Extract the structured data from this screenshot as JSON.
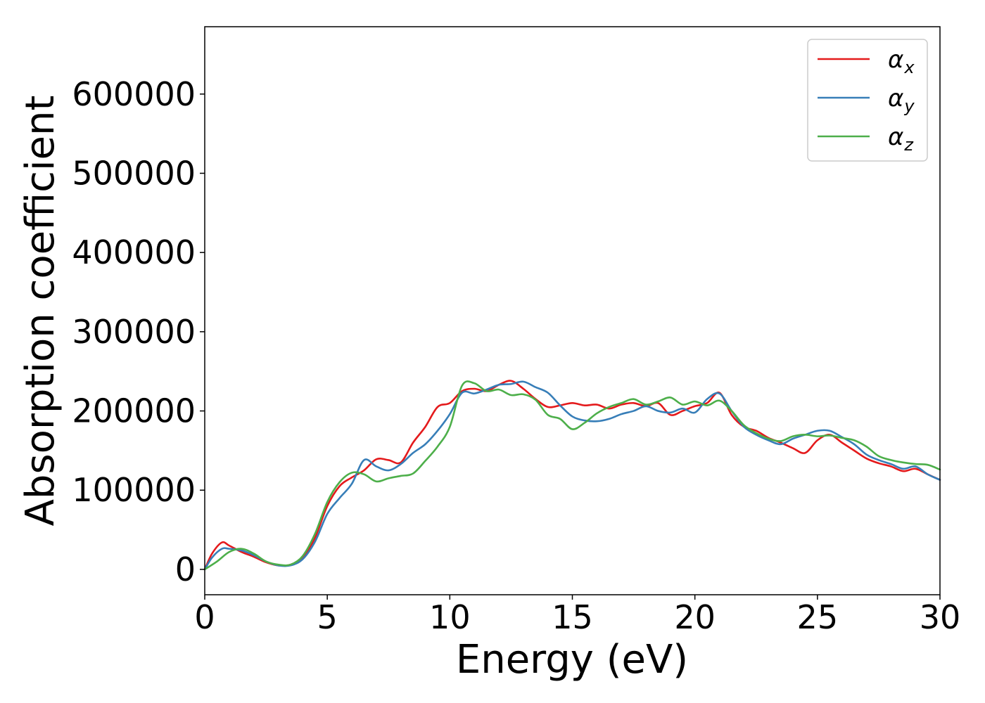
{
  "chart_data": {
    "type": "line",
    "title": "",
    "xlabel": "Energy (eV)",
    "ylabel": "Absorption coefficient",
    "xlim": [
      0,
      30
    ],
    "ylim": [
      -32000,
      685000
    ],
    "xticks": [
      0,
      5,
      10,
      15,
      20,
      25,
      30
    ],
    "yticks": [
      0,
      100000,
      200000,
      300000,
      400000,
      500000,
      600000
    ],
    "grid": false,
    "legend_position": "top-right",
    "series": [
      {
        "name": "αx",
        "symbol": "α",
        "subscript": "x",
        "color": "#e41a1c",
        "points": [
          [
            0,
            0
          ],
          [
            0.3,
            20000
          ],
          [
            0.7,
            34000
          ],
          [
            1.0,
            30000
          ],
          [
            1.5,
            22000
          ],
          [
            2.0,
            16000
          ],
          [
            2.5,
            9000
          ],
          [
            3.0,
            5000
          ],
          [
            3.5,
            6000
          ],
          [
            4.0,
            15000
          ],
          [
            4.5,
            40000
          ],
          [
            5.0,
            80000
          ],
          [
            5.5,
            105000
          ],
          [
            6.0,
            116000
          ],
          [
            6.5,
            125000
          ],
          [
            7.0,
            139000
          ],
          [
            7.5,
            138000
          ],
          [
            8.0,
            135000
          ],
          [
            8.5,
            160000
          ],
          [
            9.0,
            180000
          ],
          [
            9.5,
            205000
          ],
          [
            10.0,
            210000
          ],
          [
            10.5,
            225000
          ],
          [
            11.0,
            228000
          ],
          [
            11.5,
            225000
          ],
          [
            12.0,
            233000
          ],
          [
            12.5,
            238000
          ],
          [
            13.0,
            228000
          ],
          [
            13.5,
            215000
          ],
          [
            14.0,
            205000
          ],
          [
            14.5,
            207000
          ],
          [
            15.0,
            210000
          ],
          [
            15.5,
            207000
          ],
          [
            16.0,
            208000
          ],
          [
            16.5,
            203000
          ],
          [
            17.0,
            208000
          ],
          [
            17.5,
            210000
          ],
          [
            18.0,
            206000
          ],
          [
            18.5,
            210000
          ],
          [
            19.0,
            195000
          ],
          [
            19.5,
            200000
          ],
          [
            20.0,
            206000
          ],
          [
            20.5,
            210000
          ],
          [
            21.0,
            223000
          ],
          [
            21.5,
            195000
          ],
          [
            22.0,
            180000
          ],
          [
            22.5,
            175000
          ],
          [
            23.0,
            166000
          ],
          [
            23.5,
            160000
          ],
          [
            24.0,
            153000
          ],
          [
            24.5,
            147000
          ],
          [
            25.0,
            163000
          ],
          [
            25.5,
            170000
          ],
          [
            26.0,
            160000
          ],
          [
            26.5,
            150000
          ],
          [
            27.0,
            140000
          ],
          [
            27.5,
            134000
          ],
          [
            28.0,
            130000
          ],
          [
            28.5,
            124000
          ],
          [
            29.0,
            127000
          ],
          [
            29.5,
            120000
          ],
          [
            30.0,
            113000
          ]
        ]
      },
      {
        "name": "αy",
        "symbol": "α",
        "subscript": "y",
        "color": "#377eb8",
        "points": [
          [
            0,
            0
          ],
          [
            0.3,
            15000
          ],
          [
            0.7,
            26000
          ],
          [
            1.0,
            26000
          ],
          [
            1.5,
            24000
          ],
          [
            2.0,
            18000
          ],
          [
            2.5,
            10000
          ],
          [
            3.0,
            5000
          ],
          [
            3.5,
            5000
          ],
          [
            4.0,
            13000
          ],
          [
            4.5,
            35000
          ],
          [
            5.0,
            70000
          ],
          [
            5.5,
            90000
          ],
          [
            6.0,
            108000
          ],
          [
            6.5,
            138000
          ],
          [
            7.0,
            130000
          ],
          [
            7.5,
            125000
          ],
          [
            8.0,
            133000
          ],
          [
            8.5,
            147000
          ],
          [
            9.0,
            158000
          ],
          [
            9.5,
            175000
          ],
          [
            10.0,
            196000
          ],
          [
            10.5,
            223000
          ],
          [
            11.0,
            222000
          ],
          [
            11.5,
            227000
          ],
          [
            12.0,
            233000
          ],
          [
            12.5,
            234000
          ],
          [
            13.0,
            237000
          ],
          [
            13.5,
            230000
          ],
          [
            14.0,
            223000
          ],
          [
            14.5,
            207000
          ],
          [
            15.0,
            193000
          ],
          [
            15.5,
            188000
          ],
          [
            16.0,
            187000
          ],
          [
            16.5,
            190000
          ],
          [
            17.0,
            196000
          ],
          [
            17.5,
            200000
          ],
          [
            18.0,
            206000
          ],
          [
            18.5,
            200000
          ],
          [
            19.0,
            198000
          ],
          [
            19.5,
            203000
          ],
          [
            20.0,
            198000
          ],
          [
            20.5,
            215000
          ],
          [
            21.0,
            222000
          ],
          [
            21.5,
            200000
          ],
          [
            22.0,
            180000
          ],
          [
            22.5,
            170000
          ],
          [
            23.0,
            163000
          ],
          [
            23.5,
            158000
          ],
          [
            24.0,
            165000
          ],
          [
            24.5,
            170000
          ],
          [
            25.0,
            175000
          ],
          [
            25.5,
            175000
          ],
          [
            26.0,
            167000
          ],
          [
            26.5,
            158000
          ],
          [
            27.0,
            145000
          ],
          [
            27.5,
            138000
          ],
          [
            28.0,
            133000
          ],
          [
            28.5,
            127000
          ],
          [
            29.0,
            130000
          ],
          [
            29.5,
            120000
          ],
          [
            30.0,
            113000
          ]
        ]
      },
      {
        "name": "αz",
        "symbol": "α",
        "subscript": "z",
        "color": "#4daf4a",
        "points": [
          [
            0,
            0
          ],
          [
            0.5,
            10000
          ],
          [
            1.0,
            22000
          ],
          [
            1.5,
            26000
          ],
          [
            2.0,
            20000
          ],
          [
            2.5,
            10000
          ],
          [
            3.0,
            6000
          ],
          [
            3.5,
            6000
          ],
          [
            4.0,
            17000
          ],
          [
            4.5,
            45000
          ],
          [
            5.0,
            85000
          ],
          [
            5.5,
            110000
          ],
          [
            6.0,
            122000
          ],
          [
            6.5,
            120000
          ],
          [
            7.0,
            111000
          ],
          [
            7.5,
            115000
          ],
          [
            8.0,
            118000
          ],
          [
            8.5,
            121000
          ],
          [
            9.0,
            137000
          ],
          [
            9.5,
            155000
          ],
          [
            10.0,
            180000
          ],
          [
            10.5,
            232000
          ],
          [
            11.0,
            235000
          ],
          [
            11.5,
            225000
          ],
          [
            12.0,
            227000
          ],
          [
            12.5,
            220000
          ],
          [
            13.0,
            221000
          ],
          [
            13.5,
            214000
          ],
          [
            14.0,
            195000
          ],
          [
            14.5,
            190000
          ],
          [
            15.0,
            177000
          ],
          [
            15.5,
            185000
          ],
          [
            16.0,
            197000
          ],
          [
            16.5,
            205000
          ],
          [
            17.0,
            210000
          ],
          [
            17.5,
            215000
          ],
          [
            18.0,
            208000
          ],
          [
            18.5,
            212000
          ],
          [
            19.0,
            217000
          ],
          [
            19.5,
            208000
          ],
          [
            20.0,
            212000
          ],
          [
            20.5,
            207000
          ],
          [
            21.0,
            213000
          ],
          [
            21.5,
            200000
          ],
          [
            22.0,
            182000
          ],
          [
            22.5,
            172000
          ],
          [
            23.0,
            165000
          ],
          [
            23.5,
            162000
          ],
          [
            24.0,
            168000
          ],
          [
            24.5,
            170000
          ],
          [
            25.0,
            168000
          ],
          [
            25.5,
            169000
          ],
          [
            26.0,
            166000
          ],
          [
            26.5,
            163000
          ],
          [
            27.0,
            155000
          ],
          [
            27.5,
            143000
          ],
          [
            28.0,
            138000
          ],
          [
            28.5,
            135000
          ],
          [
            29.0,
            133000
          ],
          [
            29.5,
            132000
          ],
          [
            30.0,
            126000
          ]
        ]
      }
    ]
  }
}
